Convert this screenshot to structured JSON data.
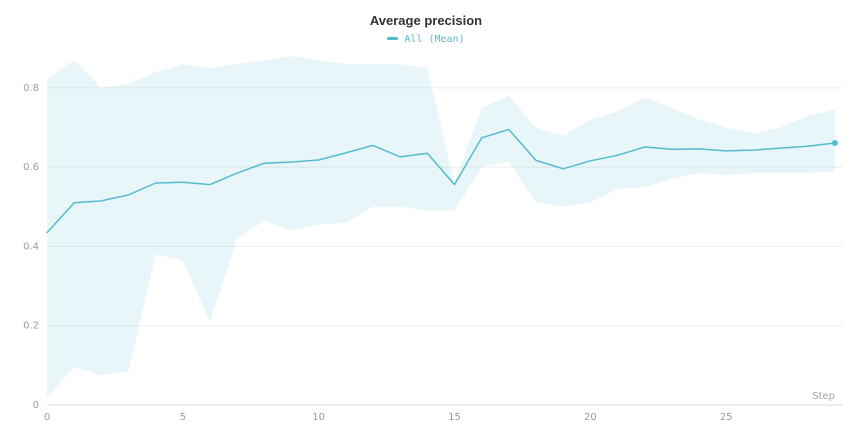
{
  "chart_data": {
    "type": "line",
    "title": "Average precision",
    "legend": "All (Mean)",
    "xlabel": "Step",
    "color": "#54bccd",
    "band_fill_opacity": 0.13,
    "grid": "horizontal",
    "legend_position": "top-center",
    "xlim": [
      0,
      29.3
    ],
    "ylim": [
      0,
      0.883
    ],
    "xticks": [
      0,
      5,
      10,
      15,
      20,
      25
    ],
    "yticks": [
      0,
      0.2,
      0.4,
      0.6,
      0.8
    ],
    "x": [
      0,
      1,
      2,
      3,
      4,
      5,
      6,
      7,
      8,
      9,
      10,
      11,
      12,
      13,
      14,
      15,
      16,
      17,
      18,
      19,
      20,
      21,
      22,
      23,
      24,
      25,
      26,
      27,
      28,
      29
    ],
    "series": [
      {
        "name": "All (Mean)",
        "values": [
          0.435,
          0.51,
          0.515,
          0.53,
          0.56,
          0.562,
          0.556,
          0.585,
          0.61,
          0.613,
          0.618,
          0.636,
          0.655,
          0.626,
          0.635,
          0.556,
          0.674,
          0.695,
          0.617,
          0.596,
          0.616,
          0.63,
          0.651,
          0.645,
          0.646,
          0.641,
          0.643,
          0.648,
          0.653,
          0.661
        ],
        "band_lower": [
          0.02,
          0.095,
          0.075,
          0.085,
          0.38,
          0.365,
          0.21,
          0.42,
          0.465,
          0.44,
          0.455,
          0.46,
          0.5,
          0.5,
          0.49,
          0.49,
          0.6,
          0.615,
          0.51,
          0.5,
          0.51,
          0.545,
          0.55,
          0.57,
          0.585,
          0.58,
          0.585,
          0.585,
          0.585,
          0.59
        ],
        "band_upper": [
          0.82,
          0.87,
          0.8,
          0.81,
          0.84,
          0.86,
          0.85,
          0.86,
          0.87,
          0.88,
          0.87,
          0.86,
          0.86,
          0.86,
          0.85,
          0.56,
          0.75,
          0.78,
          0.7,
          0.68,
          0.72,
          0.74,
          0.775,
          0.75,
          0.72,
          0.7,
          0.685,
          0.7,
          0.73,
          0.745
        ]
      }
    ],
    "end_marker": true
  }
}
